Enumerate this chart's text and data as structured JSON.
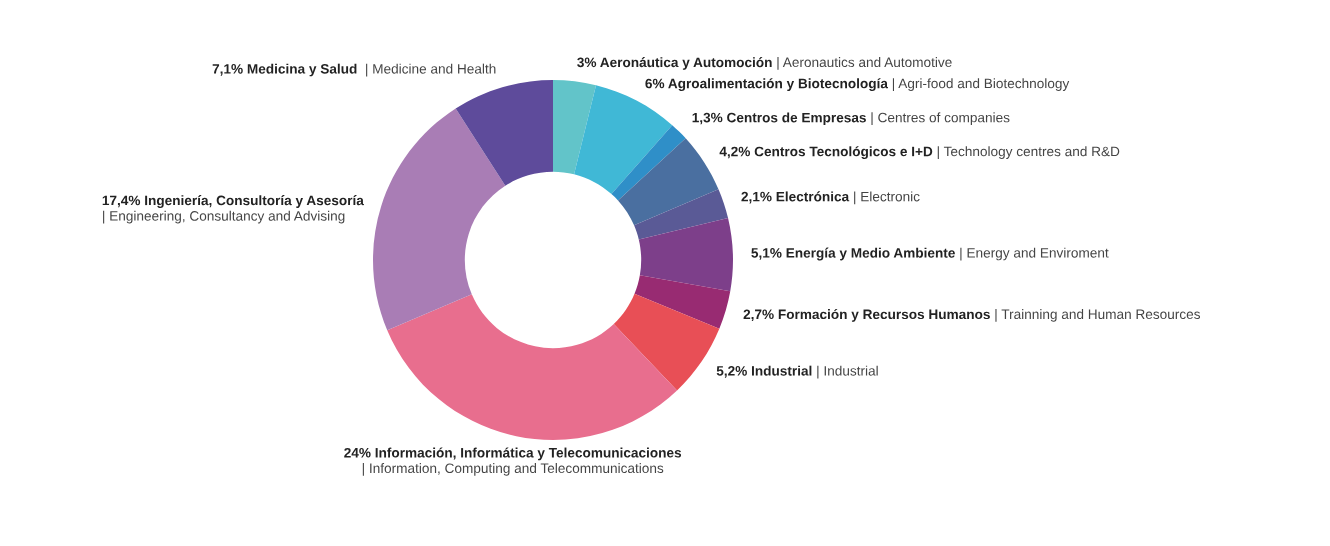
{
  "chart_data": {
    "type": "donut",
    "categories": [
      "Aeronáutica y Automoción | Aeronautics and Automotive",
      "Agroalimentación y Biotecnología | Agri-food and Biotechnology",
      "Centros de Empresas | Centres of companies",
      "Centros Tecnológicos e I+D | Technology centres and R&D",
      "Electrónica | Electronic",
      "Energía y Medio Ambiente | Energy and Enviroment",
      "Formación y Recursos Humanos | Trainning and Human Resources",
      "Industrial | Industrial",
      "Información, Informática y Telecomunicaciones | Information, Computing and Telecommunications",
      "Ingeniería, Consultoría y Asesoría | Engineering, Consultancy and Advising",
      "Medicina y Salud | Medicine and Health"
    ],
    "values": [
      3,
      6,
      1.3,
      4.2,
      2.1,
      5.1,
      2.7,
      5.2,
      24,
      17.4,
      7.1
    ],
    "value_labels": [
      "3%",
      "6%",
      "1,3%",
      "4,2%",
      "2,1%",
      "5,1%",
      "2,7%",
      "5,2%",
      "24%",
      "17,4%",
      "7,1%"
    ],
    "colors": [
      "#62c4c9",
      "#40b8d6",
      "#2f8fc8",
      "#4a6fa0",
      "#5a5a96",
      "#7d3f8a",
      "#982b72",
      "#e84f56",
      "#e86e8e",
      "#a97db5",
      "#5e4b9b"
    ]
  }
}
